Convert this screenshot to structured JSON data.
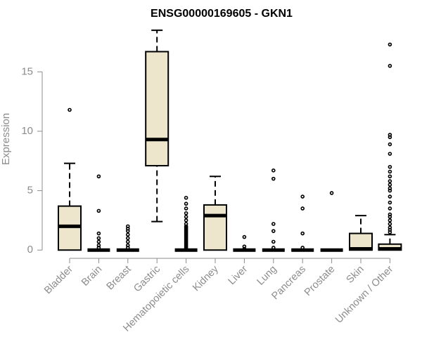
{
  "chart_data": {
    "type": "boxplot",
    "title": "ENSG00000169605 - GKN1",
    "xlabel": "",
    "ylabel": "Expression",
    "ylim": [
      -0.4,
      18.8
    ],
    "yticks": [
      0,
      5,
      10,
      15
    ],
    "grid": false,
    "colors": {
      "box_fill": "#ede6cd",
      "stroke": "#000000",
      "axis": "#8c8c8c"
    },
    "categories": [
      "Bladder",
      "Brain",
      "Breast",
      "Gastric",
      "Hematopoietic cells",
      "Kidney",
      "Liver",
      "Lung",
      "Pancreas",
      "Prostate",
      "Skin",
      "Unknown / Other"
    ],
    "boxes": [
      {
        "category": "Bladder",
        "min": 0.0,
        "q1": 0.0,
        "median": 2.0,
        "q3": 3.7,
        "max": 7.3,
        "outliers": [
          11.8
        ]
      },
      {
        "category": "Brain",
        "min": 0.0,
        "q1": 0.0,
        "median": 0.0,
        "q3": 0.0,
        "max": 0.0,
        "outliers": [
          0.2,
          0.4,
          0.7,
          1.0,
          1.4,
          3.3,
          6.2
        ]
      },
      {
        "category": "Breast",
        "min": 0.0,
        "q1": 0.0,
        "median": 0.0,
        "q3": 0.0,
        "max": 0.0,
        "outliers": [
          0.2,
          0.4,
          0.7,
          1.0,
          1.3,
          1.6,
          1.8,
          2.0
        ]
      },
      {
        "category": "Gastric",
        "min": 2.4,
        "q1": 7.1,
        "median": 9.3,
        "q3": 16.7,
        "max": 18.5,
        "outliers": []
      },
      {
        "category": "Hematopoietic cells",
        "min": 0.0,
        "q1": 0.0,
        "median": 0.0,
        "q3": 0.0,
        "max": 0.0,
        "outliers": [
          0.1,
          0.2,
          0.3,
          0.4,
          0.5,
          0.6,
          0.7,
          0.8,
          0.9,
          1.0,
          1.1,
          1.2,
          1.3,
          1.4,
          1.5,
          1.6,
          1.7,
          1.8,
          1.9,
          2.0,
          2.2,
          2.5,
          2.8,
          3.1,
          3.5,
          3.9,
          4.4
        ]
      },
      {
        "category": "Kidney",
        "min": 0.0,
        "q1": 0.0,
        "median": 2.9,
        "q3": 3.8,
        "max": 6.2,
        "outliers": []
      },
      {
        "category": "Liver",
        "min": 0.0,
        "q1": 0.0,
        "median": 0.0,
        "q3": 0.0,
        "max": 0.0,
        "outliers": [
          0.1,
          0.3,
          1.1
        ]
      },
      {
        "category": "Lung",
        "min": 0.0,
        "q1": 0.0,
        "median": 0.0,
        "q3": 0.0,
        "max": 0.0,
        "outliers": [
          0.2,
          0.7,
          1.6,
          2.2,
          6.0,
          6.7
        ]
      },
      {
        "category": "Pancreas",
        "min": 0.0,
        "q1": 0.0,
        "median": 0.0,
        "q3": 0.0,
        "max": 0.0,
        "outliers": [
          0.2,
          1.4,
          3.5,
          4.5
        ]
      },
      {
        "category": "Prostate",
        "min": 0.0,
        "q1": 0.0,
        "median": 0.0,
        "q3": 0.0,
        "max": 0.0,
        "outliers": [
          4.8
        ]
      },
      {
        "category": "Skin",
        "min": 0.0,
        "q1": 0.0,
        "median": 0.1,
        "q3": 1.4,
        "max": 2.9,
        "outliers": []
      },
      {
        "category": "Unknown / Other",
        "min": 0.0,
        "q1": 0.0,
        "median": 0.1,
        "q3": 0.5,
        "max": 1.3,
        "outliers": [
          1.5,
          1.7,
          1.9,
          2.2,
          2.5,
          2.8,
          3.0,
          3.5,
          4.0,
          4.5,
          5.0,
          5.2,
          5.5,
          5.8,
          6.2,
          6.6,
          7.0,
          8.1,
          8.9,
          9.5,
          9.7,
          15.5,
          17.3
        ]
      }
    ]
  }
}
